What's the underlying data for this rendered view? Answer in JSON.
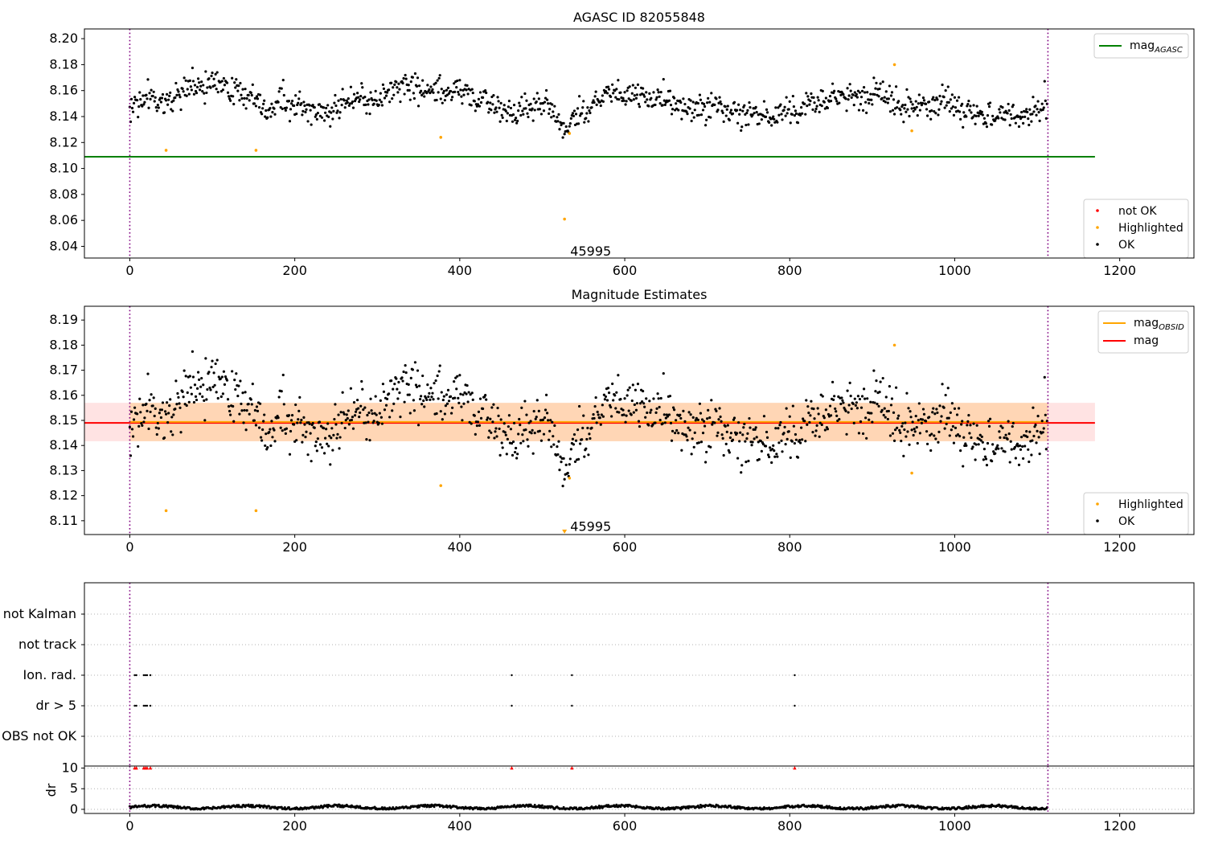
{
  "chart_data": [
    {
      "type": "scatter",
      "title": "AGASC ID 82055848",
      "xlim": [
        -55,
        1290
      ],
      "ylim": [
        8.031,
        8.2075
      ],
      "xticks": [
        0,
        200,
        400,
        600,
        800,
        1000,
        1200
      ],
      "xtick_labels": [
        "0",
        "200",
        "400",
        "600",
        "800",
        "1000",
        "1200"
      ],
      "yticks": [
        8.04,
        8.06,
        8.08,
        8.1,
        8.12,
        8.14,
        8.16,
        8.18,
        8.2
      ],
      "ytick_labels": [
        "8.04",
        "8.06",
        "8.08",
        "8.10",
        "8.12",
        "8.14",
        "8.16",
        "8.18",
        "8.20"
      ],
      "vlines": [
        0,
        1113
      ],
      "hline": {
        "name": "mag_AGASC",
        "y": 8.109,
        "x0": -55,
        "x1": 1170,
        "color": "#008000"
      },
      "ok_series": {
        "name": "OK",
        "color": "#000000",
        "n": 1113,
        "mean": 8.149,
        "spread": 0.007
      },
      "highlighted": {
        "name": "Highlighted",
        "color": "#ffa500",
        "points": [
          [
            44,
            8.114
          ],
          [
            153,
            8.114
          ],
          [
            377,
            8.124
          ],
          [
            527,
            8.061
          ],
          [
            533,
            8.127
          ],
          [
            927,
            8.18
          ],
          [
            948,
            8.129
          ]
        ]
      },
      "not_ok": {
        "name": "not OK",
        "color": "#ff0000",
        "points": []
      },
      "annotation": {
        "text": "45995",
        "x": 533,
        "y": 8.036
      },
      "legend_top": {
        "position": "top-right",
        "entries": [
          {
            "label": "mag",
            "sub": "AGASC",
            "color": "#008000"
          }
        ]
      },
      "legend_bottom": {
        "position": "bottom-right",
        "entries": [
          {
            "label": "not OK",
            "color": "#ff0000"
          },
          {
            "label": "Highlighted",
            "color": "#ffa500"
          },
          {
            "label": "OK",
            "color": "#000000"
          }
        ]
      }
    },
    {
      "type": "scatter",
      "title": "Magnitude Estimates",
      "xlim": [
        -55,
        1290
      ],
      "ylim": [
        8.1045,
        8.1955
      ],
      "xticks": [
        0,
        200,
        400,
        600,
        800,
        1000,
        1200
      ],
      "xtick_labels": [
        "0",
        "200",
        "400",
        "600",
        "800",
        "1000",
        "1200"
      ],
      "yticks": [
        8.11,
        8.12,
        8.13,
        8.14,
        8.15,
        8.16,
        8.17,
        8.18,
        8.19
      ],
      "ytick_labels": [
        "8.11",
        "8.12",
        "8.13",
        "8.14",
        "8.15",
        "8.16",
        "8.17",
        "8.18",
        "8.19"
      ],
      "vlines": [
        0,
        1113
      ],
      "mag_line": {
        "name": "mag",
        "y": 8.149,
        "band": [
          8.1417,
          8.157
        ],
        "x0": -55,
        "x1": 1170,
        "color": "#ff0000"
      },
      "mag_obsid": {
        "name": "mag_OBSID",
        "y": 8.1494,
        "x0": 0,
        "x1": 1113,
        "color": "#ffa500"
      },
      "highlighted": {
        "name": "Highlighted",
        "color": "#ffa500",
        "points": [
          [
            44,
            8.114
          ],
          [
            153,
            8.114
          ],
          [
            377,
            8.124
          ],
          [
            533,
            8.127
          ],
          [
            927,
            8.18
          ],
          [
            948,
            8.129
          ]
        ]
      },
      "clipped_marker": {
        "x": 527,
        "y": 8.1055
      },
      "annotation": {
        "text": "45995",
        "x": 533,
        "y": 8.1075
      },
      "legend_top": {
        "position": "top-right",
        "entries": [
          {
            "label": "mag",
            "sub": "OBSID",
            "color": "#ffa500"
          },
          {
            "label": "mag",
            "sub": "",
            "color": "#ff0000"
          }
        ]
      },
      "legend_bottom": {
        "position": "bottom-right",
        "entries": [
          {
            "label": "Highlighted",
            "color": "#ffa500"
          },
          {
            "label": "OK",
            "color": "#000000"
          }
        ]
      }
    },
    {
      "type": "scatter",
      "title": "",
      "xlim": [
        -55,
        1290
      ],
      "categories": [
        "OBS not OK",
        "dr > 5",
        "Ion. rad.",
        "not track",
        "not Kalman"
      ],
      "flag_x": [
        6,
        8,
        17,
        19,
        21,
        25,
        463,
        536,
        806
      ],
      "vlines": [
        0,
        1113
      ]
    },
    {
      "type": "scatter",
      "title": "",
      "ylabel": "dr",
      "xlim": [
        -55,
        1290
      ],
      "ylim": [
        -1,
        10.5
      ],
      "xticks": [
        0,
        200,
        400,
        600,
        800,
        1000,
        1200
      ],
      "xtick_labels": [
        "0",
        "200",
        "400",
        "600",
        "800",
        "1000",
        "1200"
      ],
      "yticks": [
        0,
        5,
        10
      ],
      "ytick_labels": [
        "0",
        "5",
        "10"
      ],
      "high_dr_x": [
        6,
        8,
        17,
        19,
        21,
        25,
        463,
        536,
        806
      ],
      "high_dr_value": 10,
      "vlines": [
        0,
        1113
      ]
    }
  ]
}
